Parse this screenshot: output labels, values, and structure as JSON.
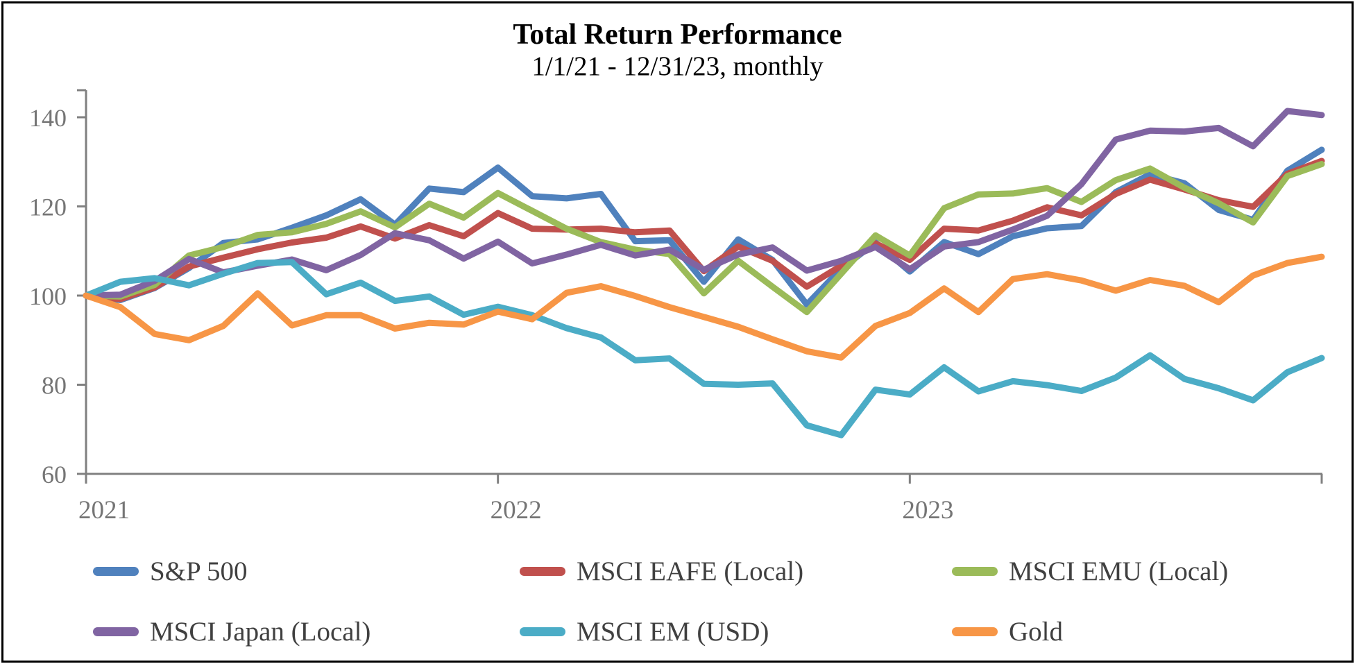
{
  "title": "Total Return Performance",
  "subtitle": "1/1/21 - 12/31/23, monthly",
  "chart_data": {
    "type": "line",
    "title": "Total Return Performance",
    "subtitle": "1/1/21 - 12/31/23, monthly",
    "x_axis_tick_labels": [
      "2021",
      "2022",
      "2023"
    ],
    "y_tick_labels": [
      "60",
      "80",
      "100",
      "120",
      "140"
    ],
    "y_ticks": [
      60,
      80,
      100,
      120,
      140
    ],
    "ylim": [
      60,
      145
    ],
    "grid": false,
    "legend_position": "bottom",
    "axis_color": "#808080",
    "tick_label_color": "#757575",
    "x_labels": [
      "1/1/21",
      "1/31/21",
      "2/28/21",
      "3/31/21",
      "4/30/21",
      "5/31/21",
      "6/30/21",
      "7/31/21",
      "8/31/21",
      "9/30/21",
      "10/31/21",
      "11/30/21",
      "12/31/21",
      "1/31/22",
      "2/28/22",
      "3/31/22",
      "4/30/22",
      "5/31/22",
      "6/30/22",
      "7/31/22",
      "8/31/22",
      "9/30/22",
      "10/31/22",
      "11/30/22",
      "12/31/22",
      "1/31/23",
      "2/28/23",
      "3/31/23",
      "4/30/23",
      "5/31/23",
      "6/30/23",
      "7/31/23",
      "8/31/23",
      "9/30/23",
      "10/31/23",
      "11/30/23",
      "12/31/23"
    ],
    "series": [
      {
        "name": "S&P 500",
        "color": "#4F81BD",
        "values": [
          100,
          99.0,
          101.7,
          106.2,
          111.8,
          112.6,
          115.2,
          118.0,
          121.6,
          115.9,
          124.0,
          123.2,
          128.7,
          122.3,
          121.8,
          122.8,
          112.2,
          112.4,
          103.1,
          112.6,
          108.0,
          98.0,
          106.0,
          111.9,
          105.4,
          112.0,
          109.3,
          113.3,
          115.1,
          115.6,
          123.2,
          127.2,
          125.2,
          119.2,
          117.0,
          128.0,
          132.7
        ]
      },
      {
        "name": "MSCI EAFE (Local)",
        "color": "#C0504D",
        "values": [
          100,
          99.2,
          101.8,
          106.5,
          108.5,
          110.4,
          111.9,
          113.0,
          115.5,
          112.8,
          115.8,
          113.3,
          118.5,
          115.0,
          114.8,
          115.0,
          114.2,
          114.6,
          105.5,
          111.0,
          107.8,
          102.0,
          106.7,
          111.7,
          108.0,
          115.0,
          114.6,
          116.8,
          119.8,
          118.0,
          122.8,
          126.0,
          123.8,
          121.4,
          119.9,
          127.3,
          130.2
        ]
      },
      {
        "name": "MSCI EMU (Local)",
        "color": "#9BBB59",
        "values": [
          100,
          99.8,
          102.4,
          109.0,
          110.9,
          113.6,
          114.2,
          116.1,
          118.9,
          115.3,
          120.6,
          117.5,
          123.0,
          119.0,
          115.0,
          112.0,
          110.3,
          109.3,
          100.5,
          107.8,
          102.0,
          96.3,
          104.9,
          113.5,
          109.0,
          119.6,
          122.7,
          122.9,
          124.1,
          121.0,
          125.9,
          128.5,
          124.2,
          120.7,
          116.4,
          126.8,
          129.5
        ]
      },
      {
        "name": "MSCI Japan (Local)",
        "color": "#8064A2",
        "values": [
          100,
          100.2,
          103.3,
          108.2,
          105.2,
          106.7,
          108.1,
          105.7,
          109.1,
          114.0,
          112.4,
          108.3,
          112.1,
          107.2,
          109.2,
          111.4,
          109.0,
          110.3,
          105.8,
          109.2,
          110.8,
          105.6,
          107.8,
          110.9,
          105.9,
          111.0,
          112.0,
          114.8,
          117.9,
          125.0,
          135.0,
          137.0,
          136.8,
          137.6,
          133.5,
          141.4,
          140.5
        ]
      },
      {
        "name": "MSCI EM (USD)",
        "color": "#4BACC6",
        "values": [
          100,
          103.1,
          103.9,
          102.3,
          104.9,
          107.3,
          107.5,
          100.3,
          102.9,
          98.8,
          99.8,
          95.7,
          97.5,
          95.6,
          92.7,
          90.6,
          85.5,
          85.9,
          80.2,
          80.0,
          80.3,
          70.9,
          68.7,
          78.9,
          77.8,
          83.9,
          78.5,
          80.8,
          79.9,
          78.6,
          81.6,
          86.6,
          81.3,
          79.2,
          76.5,
          82.8,
          86.0
        ]
      },
      {
        "name": "Gold",
        "color": "#F79646",
        "values": [
          100,
          97.4,
          91.4,
          90.0,
          93.2,
          100.5,
          93.3,
          95.6,
          95.6,
          92.6,
          93.9,
          93.5,
          96.4,
          94.7,
          100.6,
          102.1,
          99.9,
          97.4,
          95.2,
          93.0,
          90.2,
          87.5,
          86.1,
          93.2,
          96.1,
          101.6,
          96.3,
          103.7,
          104.8,
          103.4,
          101.1,
          103.5,
          102.2,
          98.5,
          104.5,
          107.3,
          108.7
        ]
      }
    ]
  }
}
